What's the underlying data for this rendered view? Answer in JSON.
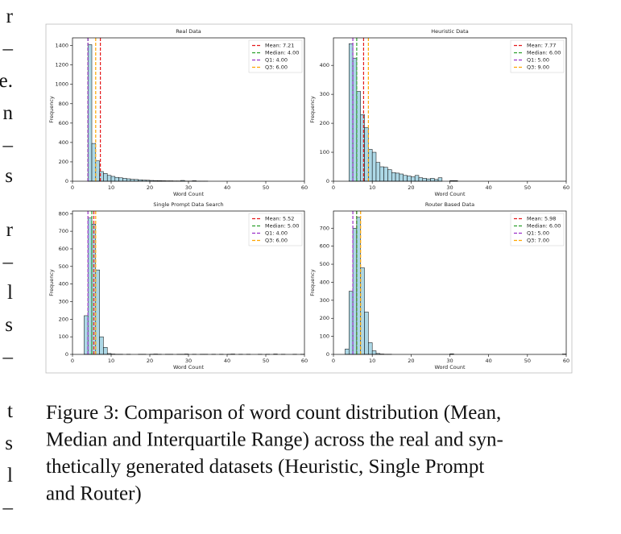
{
  "chart_data": [
    {
      "type": "histogram",
      "title": "Real Data",
      "xlabel": "Word Count",
      "ylabel": "Frequency",
      "bins": [
        4,
        5,
        6,
        7,
        8,
        9,
        10,
        11,
        12,
        13,
        14,
        15,
        16,
        17,
        18,
        19,
        20,
        21,
        22,
        23,
        24,
        25,
        26,
        27,
        28,
        29,
        30,
        31,
        32,
        33,
        34,
        35
      ],
      "values": [
        1410,
        390,
        210,
        100,
        80,
        60,
        50,
        40,
        35,
        30,
        25,
        20,
        18,
        15,
        12,
        10,
        8,
        7,
        6,
        5,
        4,
        4,
        3,
        3,
        8,
        2,
        2,
        5,
        1,
        1,
        1
      ],
      "color": "#add8e6",
      "xlim": [
        0,
        60
      ],
      "xticks": [
        0,
        10,
        20,
        30,
        40,
        50,
        60
      ],
      "ylim": [
        0,
        1480
      ],
      "yticks": [
        0,
        200,
        400,
        600,
        800,
        1000,
        1200,
        1400
      ],
      "legend": "upper right",
      "lines": [
        {
          "name": "Mean: 7.21",
          "value": 7.21,
          "color": "#e41a1c"
        },
        {
          "name": "Median: 4.00",
          "value": 4.0,
          "color": "#2ca02c"
        },
        {
          "name": "Q1: 4.00",
          "value": 4.0,
          "color": "#9b30c8"
        },
        {
          "name": "Q3: 6.00",
          "value": 6.0,
          "color": "#ffa500"
        }
      ]
    },
    {
      "type": "histogram",
      "title": "Heuristic Data",
      "xlabel": "Word Count",
      "ylabel": "Frequency",
      "bins": [
        4,
        5,
        6,
        7,
        8,
        9,
        10,
        11,
        12,
        13,
        14,
        15,
        16,
        17,
        18,
        19,
        20,
        21,
        22,
        23,
        24,
        25,
        26,
        27,
        28,
        29,
        30,
        31,
        32
      ],
      "values": [
        475,
        425,
        310,
        230,
        185,
        110,
        100,
        65,
        50,
        48,
        40,
        30,
        28,
        25,
        20,
        18,
        15,
        20,
        12,
        10,
        8,
        10,
        6,
        12,
        0,
        0,
        2,
        2
      ],
      "color": "#add8e6",
      "xlim": [
        0,
        60
      ],
      "xticks": [
        0,
        10,
        20,
        30,
        40,
        50,
        60
      ],
      "ylim": [
        0,
        495
      ],
      "yticks": [
        0,
        100,
        200,
        300,
        400
      ],
      "legend": "upper right",
      "lines": [
        {
          "name": "Mean: 7.77",
          "value": 7.77,
          "color": "#e41a1c"
        },
        {
          "name": "Median: 6.00",
          "value": 6.0,
          "color": "#2ca02c"
        },
        {
          "name": "Q1: 5.00",
          "value": 5.0,
          "color": "#9b30c8"
        },
        {
          "name": "Q3: 9.00",
          "value": 9.0,
          "color": "#ffa500"
        }
      ]
    },
    {
      "type": "histogram",
      "title": "Single Prompt Data Search",
      "xlabel": "Word Count",
      "ylabel": "Frequency",
      "bins": [
        3,
        4,
        5,
        6,
        7,
        8,
        9,
        10,
        11,
        12,
        13,
        14,
        15,
        16,
        17,
        18,
        19,
        20,
        21,
        22,
        23,
        24,
        25,
        26,
        27,
        28,
        29,
        30,
        31,
        32,
        33,
        34,
        35,
        36,
        37,
        38,
        39,
        40,
        41,
        42,
        43,
        44,
        45,
        46,
        47,
        48,
        49,
        50,
        51,
        52,
        53,
        54,
        55,
        56,
        57,
        58,
        59,
        60
      ],
      "values": [
        220,
        775,
        740,
        480,
        100,
        40,
        5,
        2,
        1,
        1,
        0,
        1,
        0,
        0,
        1,
        1,
        0,
        1,
        2,
        1,
        0,
        1,
        1,
        0,
        1,
        1,
        2,
        0,
        1,
        0,
        1,
        1,
        0,
        1,
        0,
        1,
        0,
        1,
        2,
        0,
        1,
        0,
        1,
        0,
        0,
        1,
        0,
        1,
        0,
        2,
        0,
        1,
        0,
        0,
        1,
        0,
        1
      ],
      "color": "#add8e6",
      "xlim": [
        0,
        60
      ],
      "xticks": [
        0,
        10,
        20,
        30,
        40,
        50,
        60
      ],
      "ylim": [
        0,
        815
      ],
      "yticks": [
        0,
        100,
        200,
        300,
        400,
        500,
        600,
        700,
        800
      ],
      "legend": "upper right",
      "lines": [
        {
          "name": "Mean: 5.52",
          "value": 5.52,
          "color": "#e41a1c"
        },
        {
          "name": "Median: 5.00",
          "value": 5.0,
          "color": "#2ca02c"
        },
        {
          "name": "Q1: 4.00",
          "value": 4.0,
          "color": "#9b30c8"
        },
        {
          "name": "Q3: 6.00",
          "value": 6.0,
          "color": "#ffa500"
        }
      ]
    },
    {
      "type": "histogram",
      "title": "Router Based Data",
      "xlabel": "Word Count",
      "ylabel": "Frequency",
      "bins": [
        3,
        4,
        5,
        6,
        7,
        8,
        9,
        10,
        11,
        12,
        13,
        14,
        15,
        16,
        17,
        18,
        19,
        20,
        21,
        22,
        23,
        24,
        25,
        26,
        27,
        28,
        29,
        30,
        31,
        32,
        33,
        34,
        35,
        36,
        37,
        38,
        39,
        40,
        41,
        42,
        43,
        44,
        45,
        46,
        47,
        48,
        49,
        50,
        51,
        52,
        53,
        54,
        55,
        56,
        57,
        58,
        59,
        60
      ],
      "values": [
        30,
        350,
        700,
        760,
        480,
        235,
        65,
        20,
        5,
        2,
        1,
        1,
        0,
        0,
        0,
        0,
        0,
        0,
        0,
        0,
        0,
        0,
        0,
        0,
        0,
        0,
        0,
        3,
        0,
        0,
        0,
        0,
        0,
        0,
        0,
        0,
        0,
        0,
        0,
        0,
        0,
        0,
        0,
        0,
        0,
        0,
        0,
        0,
        0,
        0,
        0,
        0,
        0,
        0,
        0,
        0,
        2
      ],
      "color": "#add8e6",
      "xlim": [
        0,
        60
      ],
      "xticks": [
        0,
        10,
        20,
        30,
        40,
        50,
        60
      ],
      "ylim": [
        0,
        795
      ],
      "yticks": [
        0,
        100,
        200,
        300,
        400,
        500,
        600,
        700
      ],
      "legend": "upper right",
      "lines": [
        {
          "name": "Mean: 5.98",
          "value": 5.98,
          "color": "#e41a1c"
        },
        {
          "name": "Median: 6.00",
          "value": 6.0,
          "color": "#2ca02c"
        },
        {
          "name": "Q1: 5.00",
          "value": 5.0,
          "color": "#9b30c8"
        },
        {
          "name": "Q3: 7.00",
          "value": 7.0,
          "color": "#ffa500"
        }
      ]
    }
  ],
  "margin_text": [
    "r",
    "–",
    "e.",
    "n",
    "–",
    "s",
    "r",
    "–",
    "l",
    "s",
    "–",
    "t",
    "s",
    "l",
    "–"
  ],
  "caption": [
    "Figure 3: Comparison of word count distribution (Mean,",
    "Median and Interquartile Range) across the real and syn-",
    "thetically generated datasets (Heuristic, Single Prompt",
    "and Router)"
  ]
}
